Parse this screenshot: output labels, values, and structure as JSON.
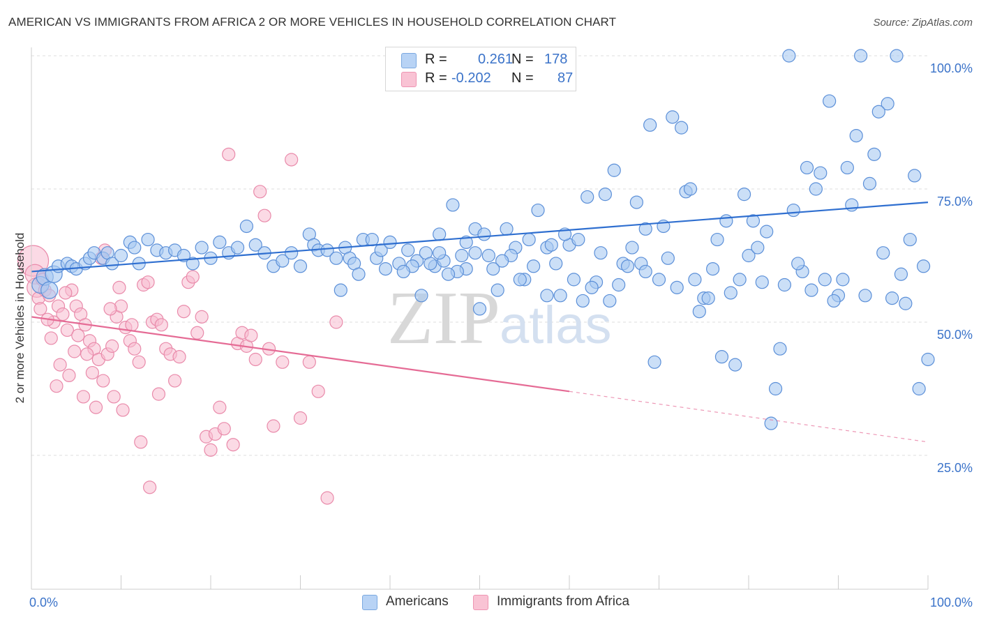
{
  "title": "AMERICAN VS IMMIGRANTS FROM AFRICA 2 OR MORE VEHICLES IN HOUSEHOLD CORRELATION CHART",
  "source": "Source: ZipAtlas.com",
  "watermark": "ZIPatlas",
  "legend_top": {
    "rows": [
      {
        "r_label": "R =",
        "r_value": "0.261",
        "n_label": "N =",
        "n_value": "178"
      },
      {
        "r_label": "R =",
        "r_value": "-0.202",
        "n_label": "N =",
        "n_value": "87"
      }
    ]
  },
  "legend_bottom": {
    "americans": "Americans",
    "immigrants": "Immigrants from Africa"
  },
  "colors": {
    "blue_fill": "#a9c9f2",
    "blue_stroke": "#5b8fd8",
    "blue_line": "#2f6fd0",
    "pink_fill": "#f7bccf",
    "pink_stroke": "#e98aaa",
    "pink_line": "#e56b95",
    "axis_text": "#3b73c9",
    "grid": "#dddddd"
  },
  "chart_data": {
    "type": "scatter",
    "title": "AMERICAN VS IMMIGRANTS FROM AFRICA 2 OR MORE VEHICLES IN HOUSEHOLD CORRELATION CHART",
    "xlabel": "",
    "ylabel": "2 or more Vehicles in Household",
    "xlim": [
      0,
      100
    ],
    "ylim": [
      0,
      100
    ],
    "x_tick_labels": [
      "0.0%",
      "100.0%"
    ],
    "y_tick_labels": [
      "25.0%",
      "50.0%",
      "75.0%",
      "100.0%"
    ],
    "y_ticks": [
      25,
      50,
      75,
      100
    ],
    "grid": true,
    "legend_position": "top-center",
    "series": [
      {
        "name": "Americans",
        "r": 0.261,
        "n": 178,
        "trend": {
          "x0": 0,
          "y0": 59.5,
          "x1": 100,
          "y1": 72.5
        },
        "points": [
          [
            1.0,
            57.0
          ],
          [
            1.5,
            58.5
          ],
          [
            2.0,
            56.0
          ],
          [
            2.5,
            59.0
          ],
          [
            3.0,
            60.5
          ],
          [
            4.0,
            61.0
          ],
          [
            4.5,
            60.5
          ],
          [
            5.0,
            60.0
          ],
          [
            6.0,
            61.0
          ],
          [
            6.5,
            62.0
          ],
          [
            7.0,
            63.0
          ],
          [
            8.0,
            62.0
          ],
          [
            8.5,
            63.0
          ],
          [
            9.0,
            61.0
          ],
          [
            10.0,
            62.5
          ],
          [
            11.0,
            65.0
          ],
          [
            11.5,
            64.0
          ],
          [
            12.0,
            61.0
          ],
          [
            13.0,
            65.5
          ],
          [
            14.0,
            63.5
          ],
          [
            15.0,
            63.0
          ],
          [
            16.0,
            63.5
          ],
          [
            17.0,
            62.5
          ],
          [
            18.0,
            61.0
          ],
          [
            19.0,
            64.0
          ],
          [
            20.0,
            62.0
          ],
          [
            21.0,
            65.0
          ],
          [
            22.0,
            63.0
          ],
          [
            23.0,
            64.0
          ],
          [
            24.0,
            68.0
          ],
          [
            25.0,
            64.5
          ],
          [
            26.0,
            63.0
          ],
          [
            27.0,
            60.5
          ],
          [
            28.0,
            61.5
          ],
          [
            29.0,
            63.0
          ],
          [
            30.0,
            60.5
          ],
          [
            31.0,
            66.5
          ],
          [
            31.5,
            64.5
          ],
          [
            32.0,
            63.5
          ],
          [
            33.0,
            63.5
          ],
          [
            34.0,
            62.0
          ],
          [
            34.5,
            56.0
          ],
          [
            35.0,
            64.0
          ],
          [
            35.5,
            62.0
          ],
          [
            36.0,
            61.0
          ],
          [
            36.5,
            59.0
          ],
          [
            37.0,
            65.5
          ],
          [
            38.0,
            65.5
          ],
          [
            38.5,
            62.0
          ],
          [
            39.0,
            63.5
          ],
          [
            39.5,
            60.0
          ],
          [
            40.0,
            65.0
          ],
          [
            41.0,
            61.0
          ],
          [
            42.0,
            63.5
          ],
          [
            43.0,
            61.5
          ],
          [
            44.0,
            63.0
          ],
          [
            45.0,
            60.5
          ],
          [
            45.5,
            66.5
          ],
          [
            46.0,
            61.5
          ],
          [
            47.0,
            72.0
          ],
          [
            48.0,
            62.5
          ],
          [
            48.5,
            65.0
          ],
          [
            49.5,
            67.5
          ],
          [
            50.0,
            52.5
          ],
          [
            51.0,
            62.5
          ],
          [
            52.0,
            56.0
          ],
          [
            53.0,
            67.5
          ],
          [
            54.0,
            64.0
          ],
          [
            55.0,
            58.0
          ],
          [
            56.0,
            60.5
          ],
          [
            57.5,
            64.0
          ],
          [
            58.0,
            64.5
          ],
          [
            59.0,
            55.0
          ],
          [
            60.0,
            64.5
          ],
          [
            61.0,
            65.5
          ],
          [
            62.0,
            73.5
          ],
          [
            63.0,
            57.5
          ],
          [
            64.0,
            74.0
          ],
          [
            65.0,
            78.5
          ],
          [
            66.0,
            61.0
          ],
          [
            67.0,
            64.0
          ],
          [
            68.0,
            61.0
          ],
          [
            68.5,
            67.5
          ],
          [
            69.0,
            87.0
          ],
          [
            70.0,
            58.0
          ],
          [
            71.0,
            62.0
          ],
          [
            72.0,
            56.5
          ],
          [
            73.0,
            74.5
          ],
          [
            74.0,
            58.0
          ],
          [
            75.0,
            54.5
          ],
          [
            76.0,
            60.0
          ],
          [
            77.0,
            43.5
          ],
          [
            78.0,
            55.5
          ],
          [
            79.0,
            58.0
          ],
          [
            80.0,
            62.5
          ],
          [
            81.0,
            64.0
          ],
          [
            82.0,
            67.0
          ],
          [
            83.0,
            37.5
          ],
          [
            84.0,
            57.0
          ],
          [
            85.0,
            71.0
          ],
          [
            86.0,
            59.5
          ],
          [
            87.0,
            56.0
          ],
          [
            88.0,
            78.0
          ],
          [
            89.0,
            91.5
          ],
          [
            90.0,
            55.0
          ],
          [
            91.0,
            79.0
          ],
          [
            92.0,
            85.0
          ],
          [
            93.0,
            55.0
          ],
          [
            94.0,
            81.5
          ],
          [
            95.0,
            63.0
          ],
          [
            96.0,
            54.5
          ],
          [
            97.0,
            59.0
          ],
          [
            98.0,
            65.5
          ],
          [
            99.0,
            37.5
          ],
          [
            100.0,
            43.0
          ],
          [
            99.5,
            60.5
          ],
          [
            98.5,
            77.5
          ],
          [
            97.5,
            53.5
          ],
          [
            96.5,
            100.0
          ],
          [
            95.5,
            91.0
          ],
          [
            94.5,
            89.5
          ],
          [
            93.5,
            76.0
          ],
          [
            92.5,
            100.0
          ],
          [
            91.5,
            72.0
          ],
          [
            90.5,
            58.0
          ],
          [
            89.5,
            54.0
          ],
          [
            88.5,
            58.0
          ],
          [
            87.5,
            75.0
          ],
          [
            86.5,
            79.0
          ],
          [
            85.5,
            61.0
          ],
          [
            84.5,
            100.0
          ],
          [
            83.5,
            45.0
          ],
          [
            82.5,
            31.0
          ],
          [
            81.5,
            57.5
          ],
          [
            80.5,
            69.0
          ],
          [
            79.5,
            74.0
          ],
          [
            78.5,
            42.0
          ],
          [
            77.5,
            69.0
          ],
          [
            76.5,
            65.5
          ],
          [
            75.5,
            54.5
          ],
          [
            74.5,
            52.0
          ],
          [
            73.5,
            75.0
          ],
          [
            72.5,
            86.5
          ],
          [
            71.5,
            88.5
          ],
          [
            70.5,
            68.0
          ],
          [
            69.5,
            42.5
          ],
          [
            68.5,
            59.5
          ],
          [
            67.5,
            72.5
          ],
          [
            66.5,
            60.5
          ],
          [
            65.5,
            57.0
          ],
          [
            64.5,
            54.0
          ],
          [
            63.5,
            63.0
          ],
          [
            62.5,
            56.5
          ],
          [
            61.5,
            54.0
          ],
          [
            60.5,
            58.0
          ],
          [
            59.5,
            66.5
          ],
          [
            58.5,
            61.0
          ],
          [
            57.5,
            55.0
          ],
          [
            56.5,
            71.0
          ],
          [
            55.5,
            65.5
          ],
          [
            54.5,
            58.0
          ],
          [
            53.5,
            62.5
          ],
          [
            52.5,
            61.5
          ],
          [
            51.5,
            60.0
          ],
          [
            50.5,
            66.5
          ],
          [
            49.5,
            63.0
          ],
          [
            48.5,
            60.0
          ],
          [
            47.5,
            59.5
          ],
          [
            46.5,
            59.0
          ],
          [
            45.5,
            63.0
          ],
          [
            44.5,
            61.0
          ],
          [
            43.5,
            55.0
          ],
          [
            42.5,
            60.5
          ],
          [
            41.5,
            59.5
          ]
        ]
      },
      {
        "name": "Immigrants from Africa",
        "r": -0.202,
        "n": 87,
        "trend": {
          "x0": 0,
          "y0": 51.0,
          "x1": 60,
          "y1": 37.0
        },
        "trend_dashed": {
          "x0": 60,
          "y0": 37.0,
          "x1": 100,
          "y1": 27.5
        },
        "points": [
          [
            0.2,
            61.5
          ],
          [
            0.4,
            59.0
          ],
          [
            0.6,
            56.5
          ],
          [
            0.8,
            54.5
          ],
          [
            1.0,
            52.5
          ],
          [
            1.5,
            56.0
          ],
          [
            2.0,
            55.0
          ],
          [
            2.5,
            50.0
          ],
          [
            3.0,
            53.0
          ],
          [
            3.5,
            51.5
          ],
          [
            4.0,
            48.5
          ],
          [
            4.5,
            56.0
          ],
          [
            5.0,
            53.0
          ],
          [
            5.5,
            51.5
          ],
          [
            6.0,
            49.5
          ],
          [
            6.5,
            46.5
          ],
          [
            7.0,
            45.0
          ],
          [
            7.5,
            43.0
          ],
          [
            8.0,
            39.0
          ],
          [
            8.5,
            44.0
          ],
          [
            9.0,
            45.5
          ],
          [
            9.5,
            51.0
          ],
          [
            10.0,
            53.0
          ],
          [
            10.5,
            49.0
          ],
          [
            11.0,
            46.5
          ],
          [
            11.5,
            45.0
          ],
          [
            12.0,
            42.5
          ],
          [
            12.5,
            57.0
          ],
          [
            13.0,
            57.5
          ],
          [
            13.5,
            50.0
          ],
          [
            14.0,
            50.5
          ],
          [
            14.5,
            49.5
          ],
          [
            15.0,
            45.0
          ],
          [
            15.5,
            44.0
          ],
          [
            16.0,
            39.0
          ],
          [
            16.5,
            43.5
          ],
          [
            17.0,
            52.0
          ],
          [
            17.5,
            57.5
          ],
          [
            18.0,
            58.5
          ],
          [
            18.5,
            48.0
          ],
          [
            19.0,
            51.0
          ],
          [
            19.5,
            28.5
          ],
          [
            20.0,
            26.0
          ],
          [
            20.5,
            29.0
          ],
          [
            21.0,
            34.0
          ],
          [
            21.5,
            30.0
          ],
          [
            22.0,
            81.5
          ],
          [
            22.5,
            27.0
          ],
          [
            23.0,
            46.0
          ],
          [
            23.5,
            48.0
          ],
          [
            24.0,
            45.5
          ],
          [
            24.5,
            47.5
          ],
          [
            25.0,
            43.0
          ],
          [
            25.5,
            74.5
          ],
          [
            26.0,
            70.0
          ],
          [
            26.5,
            45.0
          ],
          [
            27.0,
            30.5
          ],
          [
            28.0,
            42.5
          ],
          [
            29.0,
            80.5
          ],
          [
            30.0,
            32.0
          ],
          [
            31.0,
            42.5
          ],
          [
            32.0,
            37.0
          ],
          [
            33.0,
            17.0
          ],
          [
            34.0,
            50.0
          ],
          [
            1.2,
            58.0
          ],
          [
            1.8,
            50.5
          ],
          [
            2.2,
            47.0
          ],
          [
            2.8,
            38.0
          ],
          [
            3.2,
            42.0
          ],
          [
            3.8,
            55.5
          ],
          [
            4.2,
            40.0
          ],
          [
            4.8,
            44.5
          ],
          [
            5.2,
            47.5
          ],
          [
            5.8,
            36.0
          ],
          [
            6.2,
            44.0
          ],
          [
            6.8,
            40.5
          ],
          [
            7.2,
            34.0
          ],
          [
            7.8,
            62.0
          ],
          [
            8.2,
            63.5
          ],
          [
            8.8,
            52.5
          ],
          [
            9.2,
            36.0
          ],
          [
            9.8,
            56.5
          ],
          [
            10.2,
            33.5
          ],
          [
            11.2,
            49.5
          ],
          [
            12.2,
            27.5
          ],
          [
            13.2,
            19.0
          ],
          [
            14.2,
            36.5
          ]
        ]
      }
    ]
  }
}
